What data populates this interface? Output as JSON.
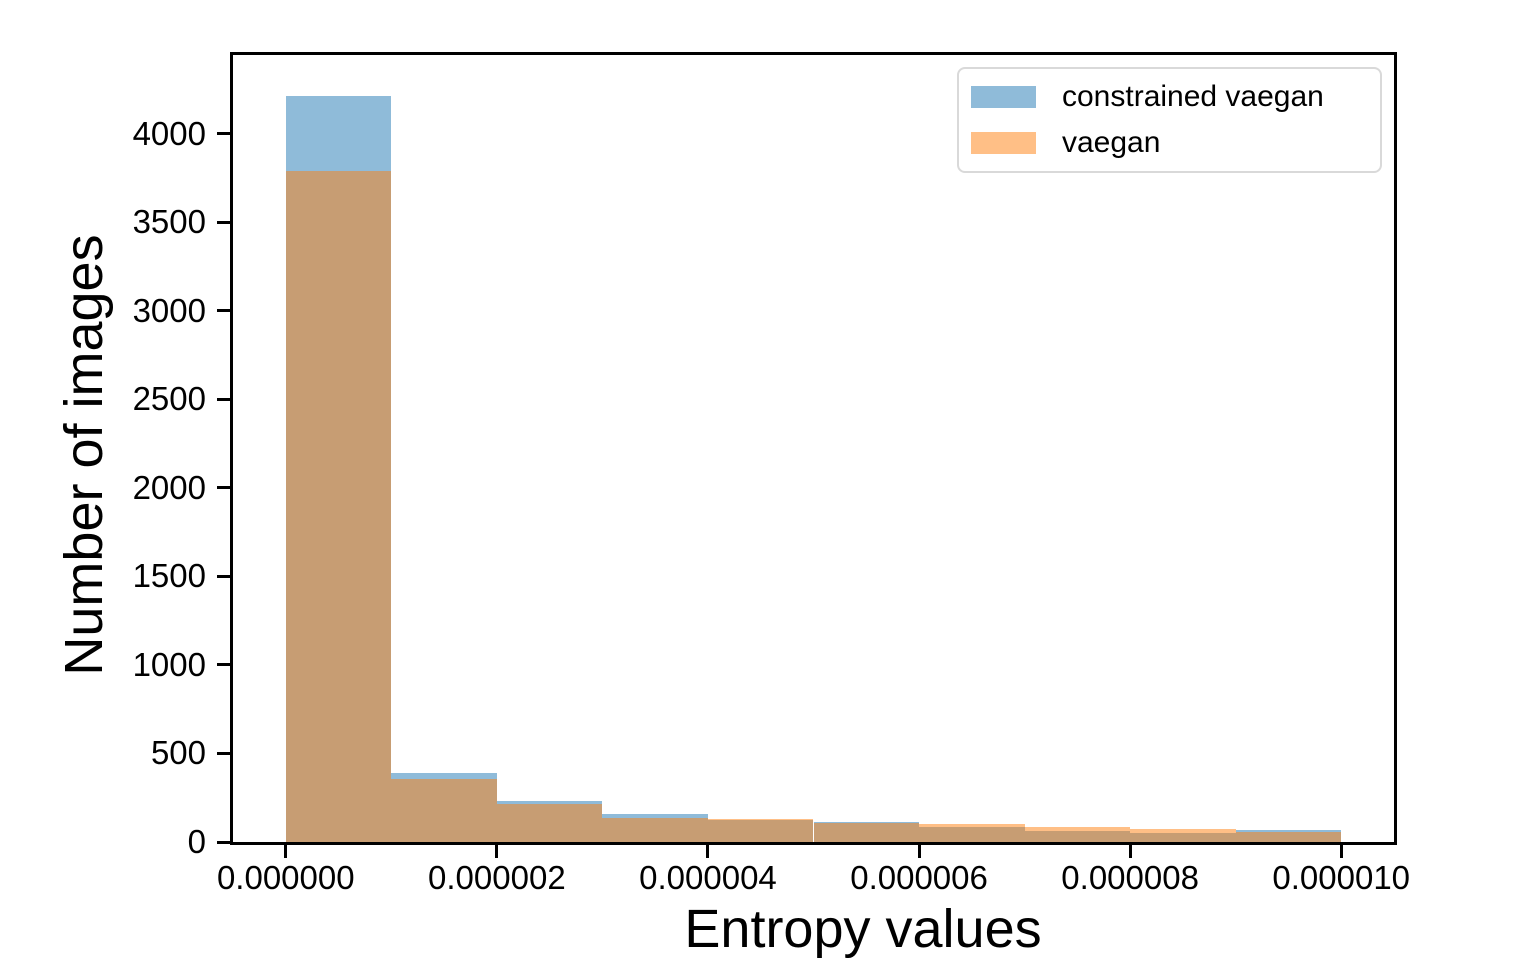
{
  "page": {
    "background": "#ffffff",
    "axis_color": "#000000",
    "text_color": "#000000",
    "legend_border_color": "#d9d9d9"
  },
  "chart_data": {
    "type": "histogram",
    "xlabel": "Entropy values",
    "ylabel": "Number of images",
    "grid": false,
    "xlim": [
      -5e-07,
      1.05e-05
    ],
    "ylim": [
      0,
      4444
    ],
    "bin_edges": [
      0,
      1e-06,
      2e-06,
      3e-06,
      4e-06,
      5e-06,
      6e-06,
      7e-06,
      8e-06,
      9e-06,
      1e-05
    ],
    "series": [
      {
        "name": "constrained vaegan",
        "base_color": "#1f77b4",
        "alpha": 0.5,
        "values": [
          4210,
          390,
          234,
          156,
          122,
          113,
          85,
          62,
          52,
          70
        ]
      },
      {
        "name": "vaegan",
        "base_color": "#ff7f0e",
        "alpha": 0.5,
        "values": [
          3790,
          354,
          217,
          137,
          131,
          108,
          100,
          86,
          75,
          58
        ]
      }
    ],
    "x_tick_labels": [
      "0.000000",
      "0.000002",
      "0.000004",
      "0.000006",
      "0.000008",
      "0.000010"
    ],
    "x_tick_values": [
      0,
      2e-06,
      4e-06,
      6e-06,
      8e-06,
      1e-05
    ],
    "y_tick_labels": [
      "0",
      "500",
      "1000",
      "1500",
      "2000",
      "2500",
      "3000",
      "3500",
      "4000"
    ],
    "y_tick_values": [
      0,
      500,
      1000,
      1500,
      2000,
      2500,
      3000,
      3500,
      4000
    ],
    "legend": {
      "position": "upper right",
      "entries": [
        "constrained vaegan",
        "vaegan"
      ]
    }
  }
}
